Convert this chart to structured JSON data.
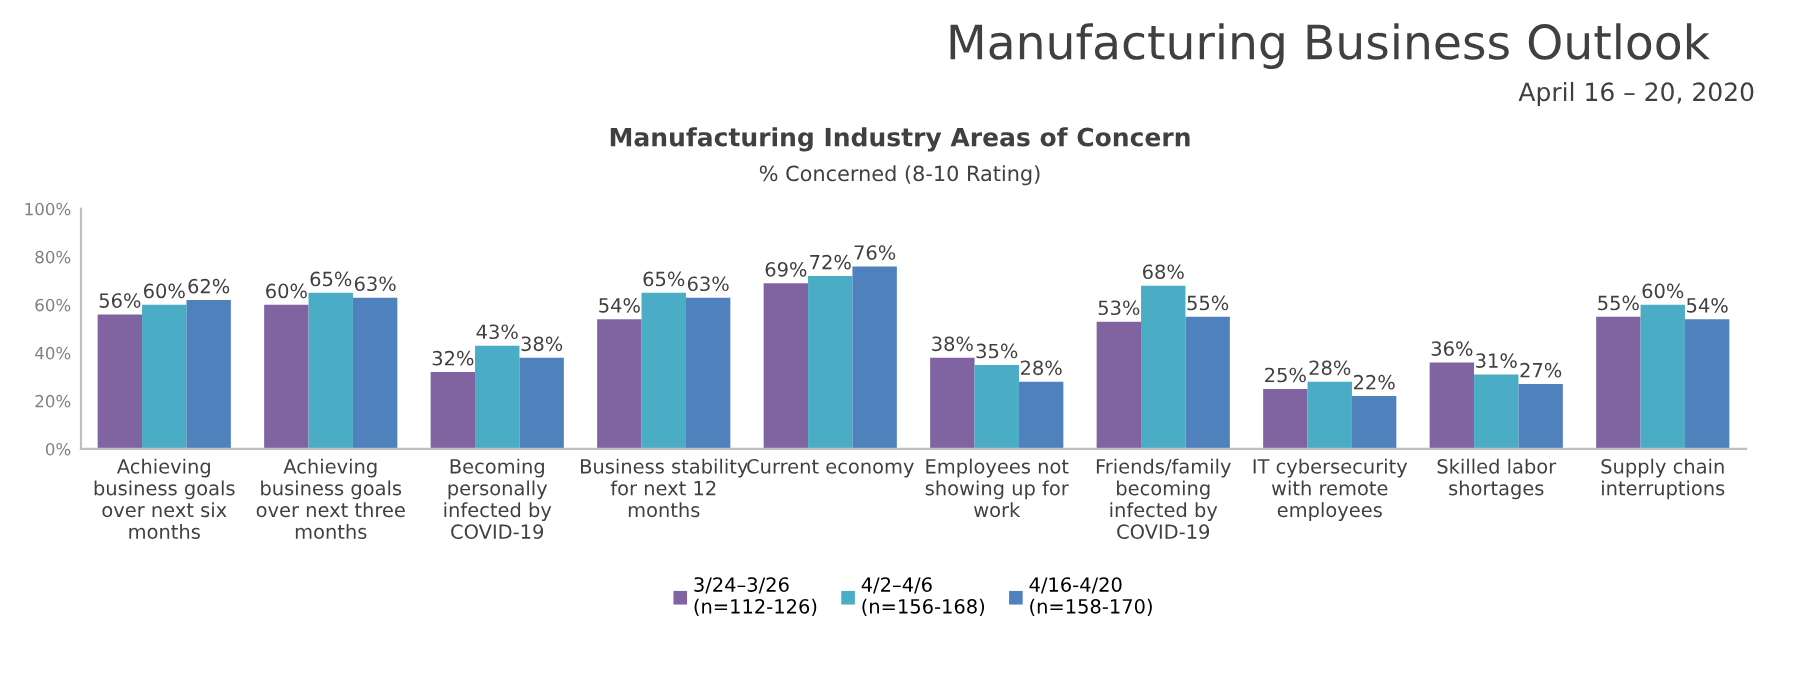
{
  "chart_data": {
    "type": "bar",
    "title": "Manufacturing Industry Areas of Concern",
    "subtitle": "% Concerned (8-10 Rating)",
    "annotations": [
      "Manufacturing Business Outlook",
      "April 16 – 20, 2020"
    ],
    "categories": [
      "Achieving\nbusiness goals\nover next six\nmonths",
      "Achieving\nbusiness goals\nover next three\nmonths",
      "Becoming\npersonally\ninfected by\nCOVID-19",
      "Business stability\nfor next 12\nmonths",
      "Current economy",
      "Employees not\nshowing up for\nwork",
      "Friends/family\nbecoming\ninfected by\nCOVID-19",
      "IT cybersecurity\nwith remote\nemployees",
      "Skilled labor\nshortages",
      "Supply chain\ninterruptions"
    ],
    "series": [
      {
        "name": "3/24–3/26\n(n=112-126)",
        "color": "#8064a2",
        "values": [
          56,
          60,
          32,
          54,
          69,
          38,
          53,
          25,
          36,
          55
        ],
        "value_labels": [
          "56%",
          "60%",
          "32%",
          "54%",
          "69%",
          "38%",
          "53%",
          "25%",
          "36%",
          "55%"
        ]
      },
      {
        "name": "4/2–4/6\n(n=156-168)",
        "color": "#4bacc6",
        "values": [
          60,
          65,
          43,
          65,
          72,
          35,
          68,
          28,
          31,
          60
        ],
        "value_labels": [
          "60%",
          "65%",
          "43%",
          "65%",
          "72%",
          "35%",
          "68%",
          "28%",
          "31%",
          "60%"
        ]
      },
      {
        "name": "4/16-4/20\n(n=158-170)",
        "color": "#4f81bd",
        "values": [
          62,
          63,
          38,
          63,
          76,
          28,
          55,
          22,
          27,
          54
        ],
        "value_labels": [
          "62%",
          "63%",
          "38%",
          "63%",
          "76%",
          "28%",
          "55%",
          "22%",
          "27%",
          "54%"
        ]
      }
    ],
    "ylim": [
      0,
      100
    ],
    "yticks": [
      {
        "value": 0,
        "label": "0%"
      },
      {
        "value": 20,
        "label": "20%"
      },
      {
        "value": 40,
        "label": "40%"
      },
      {
        "value": 60,
        "label": "60%"
      },
      {
        "value": 80,
        "label": "80%"
      },
      {
        "value": 100,
        "label": "100%"
      }
    ],
    "grid": false,
    "legend": "bottom"
  }
}
